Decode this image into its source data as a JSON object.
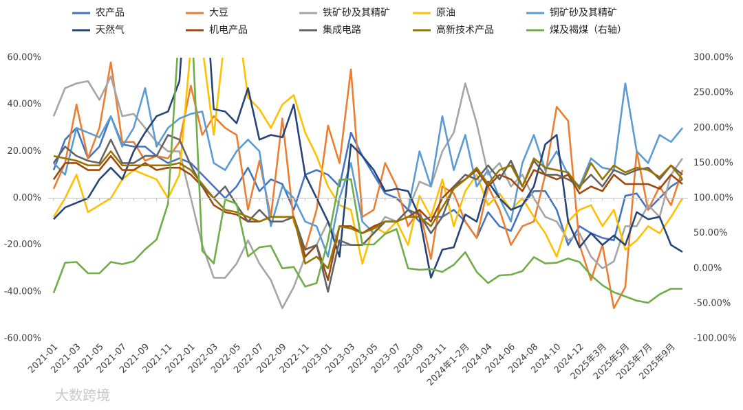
{
  "chart_data": {
    "type": "line",
    "categories": [
      "2021-01",
      null,
      "2021-03",
      null,
      "2021-05",
      null,
      "2021-07",
      null,
      "2021-09",
      null,
      "2021-11",
      null,
      "2022-01",
      null,
      "2022-03",
      null,
      "2022-05",
      null,
      "2022-07",
      null,
      "2022-09",
      null,
      "2022-11",
      null,
      "2023-01",
      null,
      "2023-03",
      null,
      "2023-05",
      null,
      "2023-07",
      null,
      "2023-09",
      null,
      "2023-11",
      null,
      "2024年1-2月",
      null,
      "2024-04",
      null,
      "2024-06",
      null,
      "2024-08",
      null,
      "2024-10",
      null,
      "2024-12",
      null,
      "2025年3月",
      null,
      "2025年5月",
      null,
      "2025年7月",
      null,
      "2025年9月",
      null
    ],
    "series": [
      {
        "name": "农产品",
        "color": "#4472c4",
        "values": [
          12,
          25,
          30,
          17,
          22,
          35,
          23,
          22,
          22,
          18,
          15,
          17,
          15,
          10,
          5,
          0,
          5,
          13,
          3,
          8,
          6,
          -5,
          10,
          12,
          10,
          5,
          28,
          18,
          10,
          2,
          0,
          -5,
          -10,
          -8,
          -8,
          -5,
          -10,
          -17,
          -6,
          -12,
          -14,
          -3,
          3,
          3,
          -5,
          -20,
          -12,
          -15,
          -17,
          -18,
          1,
          2,
          -5,
          0,
          5,
          8
        ]
      },
      {
        "name": "大豆",
        "color": "#ed7d31",
        "values": [
          4,
          15,
          40,
          17,
          30,
          58,
          24,
          24,
          16,
          18,
          17,
          24,
          48,
          27,
          35,
          30,
          27,
          -5,
          16,
          -8,
          34,
          -10,
          -22,
          -5,
          31,
          15,
          55,
          -8,
          -5,
          15,
          5,
          -12,
          -5,
          -26,
          5,
          2,
          -10,
          -17,
          5,
          -5,
          -20,
          -12,
          -10,
          10,
          39,
          33,
          -20,
          -35,
          -20,
          -47,
          -38,
          20,
          -5,
          5,
          -3,
          12
        ]
      },
      {
        "name": "铁矿砂及其精矿",
        "color": "#a5a5a5",
        "values": [
          35,
          47,
          49,
          50,
          42,
          52,
          35,
          36,
          30,
          24,
          20,
          20,
          0,
          -20,
          -34,
          -34,
          -28,
          -18,
          -28,
          -35,
          -47,
          -38,
          -25,
          -20,
          -10,
          -20,
          -20,
          -20,
          -15,
          -8,
          -10,
          -5,
          7,
          5,
          20,
          28,
          49,
          32,
          10,
          15,
          5,
          10,
          0,
          -8,
          -10,
          -18,
          -15,
          -25,
          -30,
          -27,
          -12,
          -12,
          -3,
          -8,
          10,
          17
        ]
      },
      {
        "name": "原油",
        "color": "#ffc000",
        "values": [
          -8,
          0,
          10,
          -6,
          -3,
          0,
          8,
          12,
          10,
          8,
          0,
          10,
          65,
          65,
          27,
          70,
          80,
          43,
          38,
          30,
          40,
          44,
          28,
          18,
          5,
          -3,
          -5,
          -28,
          -12,
          -15,
          -10,
          -20,
          1,
          -8,
          8,
          -12,
          3,
          10,
          -3,
          2,
          -5,
          0,
          -8,
          -15,
          -25,
          -10,
          -5,
          -3,
          -12,
          -5,
          -22,
          -18,
          -12,
          -15,
          -8,
          0
        ]
      },
      {
        "name": "铜矿砂及其精矿",
        "color": "#5b9bd5",
        "values": [
          15,
          10,
          30,
          28,
          26,
          35,
          22,
          30,
          47,
          22,
          30,
          34,
          36,
          37,
          15,
          12,
          20,
          25,
          20,
          -12,
          5,
          0,
          -10,
          -12,
          -25,
          0,
          15,
          -10,
          -15,
          -10,
          -10,
          -5,
          20,
          5,
          35,
          12,
          27,
          5,
          12,
          0,
          -10,
          15,
          27,
          12,
          20,
          10,
          5,
          17,
          13,
          12,
          49,
          20,
          15,
          27,
          24,
          30
        ]
      },
      {
        "name": "天然气",
        "color": "#264478",
        "values": [
          -9,
          -4,
          -2,
          0,
          8,
          13,
          8,
          20,
          28,
          35,
          37,
          50,
          120,
          110,
          38,
          37,
          32,
          47,
          25,
          27,
          26,
          40,
          10,
          0,
          -10,
          -25,
          23,
          18,
          12,
          3,
          4,
          3,
          -8,
          -34,
          -22,
          -21,
          -7,
          -10,
          7,
          0,
          -5,
          -3,
          5,
          23,
          27,
          -10,
          -21,
          -15,
          -20,
          -16,
          -20,
          -6,
          -9,
          -8,
          -20,
          -23
        ]
      },
      {
        "name": "机电产品",
        "color": "#9e480e",
        "values": [
          8,
          15,
          15,
          12,
          12,
          18,
          12,
          12,
          15,
          12,
          13,
          13,
          10,
          5,
          -3,
          -6,
          -7,
          -10,
          -10,
          -8,
          -8,
          -8,
          -25,
          -20,
          -35,
          -12,
          -12,
          -15,
          -12,
          -10,
          -10,
          -8,
          -5,
          -10,
          0,
          5,
          8,
          12,
          5,
          10,
          8,
          3,
          12,
          10,
          8,
          10,
          2,
          5,
          3,
          10,
          6,
          6,
          6,
          4,
          10,
          6
        ]
      },
      {
        "name": "集成电路",
        "color": "#636363",
        "values": [
          15,
          22,
          18,
          16,
          15,
          25,
          15,
          15,
          18,
          18,
          27,
          25,
          14,
          5,
          0,
          5,
          -3,
          -10,
          -5,
          -10,
          -10,
          -8,
          -22,
          -20,
          -40,
          -18,
          -20,
          -20,
          -15,
          -10,
          -10,
          -5,
          -7,
          -15,
          -8,
          5,
          10,
          8,
          14,
          8,
          16,
          5,
          16,
          10,
          10,
          8,
          5,
          10,
          5,
          12,
          10,
          12,
          13,
          8,
          14,
          10
        ]
      },
      {
        "name": "高新技术产品",
        "color": "#997300",
        "values": [
          18,
          17,
          16,
          14,
          14,
          20,
          14,
          14,
          14,
          14,
          14,
          15,
          12,
          6,
          0,
          -5,
          -6,
          -8,
          -10,
          -8,
          -8,
          -8,
          -28,
          -25,
          -30,
          -12,
          -13,
          -15,
          -13,
          -10,
          -10,
          -8,
          -8,
          -12,
          -4,
          4,
          8,
          13,
          6,
          12,
          14,
          5,
          17,
          13,
          12,
          11,
          4,
          15,
          8,
          14,
          11,
          13,
          12,
          9,
          14,
          8
        ]
      },
      {
        "name": "煤及褐煤（右轴）",
        "color": "#70ad47",
        "axis": "y2",
        "values": [
          -35,
          8,
          9,
          -7,
          -7,
          9,
          6,
          10,
          27,
          41,
          92,
          350,
          380,
          25,
          7,
          98,
          92,
          17,
          30,
          32,
          0,
          2,
          -26,
          -21,
          40,
          126,
          127,
          34,
          34,
          49,
          56,
          0,
          -2,
          -1,
          -5,
          5,
          23,
          -5,
          -21,
          -10,
          -9,
          -4,
          16,
          7,
          8,
          14,
          9,
          -10,
          -24,
          -34,
          -40,
          -46,
          -49,
          -37,
          -29,
          -29
        ]
      }
    ],
    "ylim": [
      -60,
      60
    ],
    "yticks": [
      {
        "value": -60,
        "label": "-60.00%"
      },
      {
        "value": -40,
        "label": "-40.00%"
      },
      {
        "value": -20,
        "label": "-20.00%"
      },
      {
        "value": 0,
        "label": "0.00%"
      },
      {
        "value": 20,
        "label": "20.00%"
      },
      {
        "value": 40,
        "label": "40.00%"
      },
      {
        "value": 60,
        "label": "60.00%"
      }
    ],
    "y2lim": [
      -100,
      300
    ],
    "y2ticks": [
      {
        "value": -100,
        "label": "-100.00%"
      },
      {
        "value": -50,
        "label": "-50.00%"
      },
      {
        "value": 0,
        "label": "0.00%"
      },
      {
        "value": 50,
        "label": "50.00%"
      },
      {
        "value": 100,
        "label": "100.00%"
      },
      {
        "value": 150,
        "label": "150.00%"
      },
      {
        "value": 200,
        "label": "200.00%"
      },
      {
        "value": 250,
        "label": "250.00%"
      },
      {
        "value": 300,
        "label": "300.00%"
      }
    ],
    "legend": "top",
    "watermark": "大数跨境"
  }
}
